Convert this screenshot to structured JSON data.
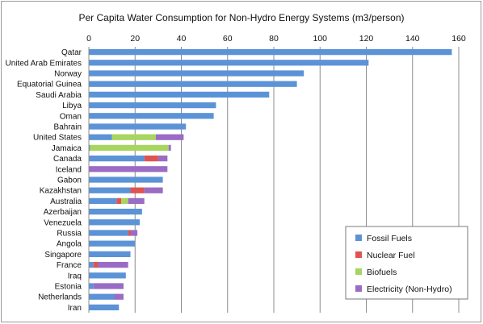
{
  "chart_data": {
    "type": "bar",
    "orientation": "horizontal",
    "stacked": true,
    "title": "Per Capita Water Consumption for Non-Hydro Energy Systems (m3/person)",
    "xlabel": "",
    "ylabel": "",
    "xlim": [
      0,
      160
    ],
    "x_ticks": [
      0,
      20,
      40,
      60,
      80,
      100,
      120,
      140,
      160
    ],
    "grid": "vertical",
    "legend_position": "bottom-right",
    "categories": [
      "Qatar",
      "United Arab Emirates",
      "Norway",
      "Equatorial Guinea",
      "Saudi Arabia",
      "Libya",
      "Oman",
      "Bahrain",
      "United States",
      "Jamaica",
      "Canada",
      "Iceland",
      "Gabon",
      "Kazakhstan",
      "Australia",
      "Azerbaijan",
      "Venezuela",
      "Russia",
      "Angola",
      "Singapore",
      "France",
      "Iraq",
      "Estonia",
      "Netherlands",
      "Iran"
    ],
    "series": [
      {
        "name": "Fossil Fuels",
        "color": "#5b93d6",
        "values": [
          157,
          121,
          93,
          90,
          78,
          55,
          54,
          42,
          10,
          0.5,
          24,
          0,
          32,
          18,
          12,
          23,
          22,
          17,
          20,
          18,
          2,
          16,
          2,
          11,
          13
        ]
      },
      {
        "name": "Nuclear Fuel",
        "color": "#dd5451",
        "values": [
          0,
          0,
          0,
          0,
          0,
          0,
          0,
          0,
          0,
          0,
          6,
          0,
          0,
          6,
          2,
          0,
          0,
          1,
          0,
          0,
          2,
          0,
          0,
          0,
          0
        ]
      },
      {
        "name": "Biofuels",
        "color": "#a8d460",
        "values": [
          0,
          0,
          0,
          0,
          0,
          0,
          0,
          0,
          19,
          34,
          0,
          0,
          0,
          0,
          3,
          0,
          0,
          0,
          0,
          0,
          0,
          0,
          0,
          0,
          0
        ]
      },
      {
        "name": "Electricity (Non-Hydro)",
        "color": "#9a6cc4",
        "values": [
          0,
          0,
          0,
          0,
          0,
          0,
          0,
          0,
          12,
          1,
          4,
          34,
          0,
          8,
          7,
          0,
          0,
          3,
          0,
          0,
          13,
          0,
          13,
          4,
          0
        ]
      }
    ]
  }
}
